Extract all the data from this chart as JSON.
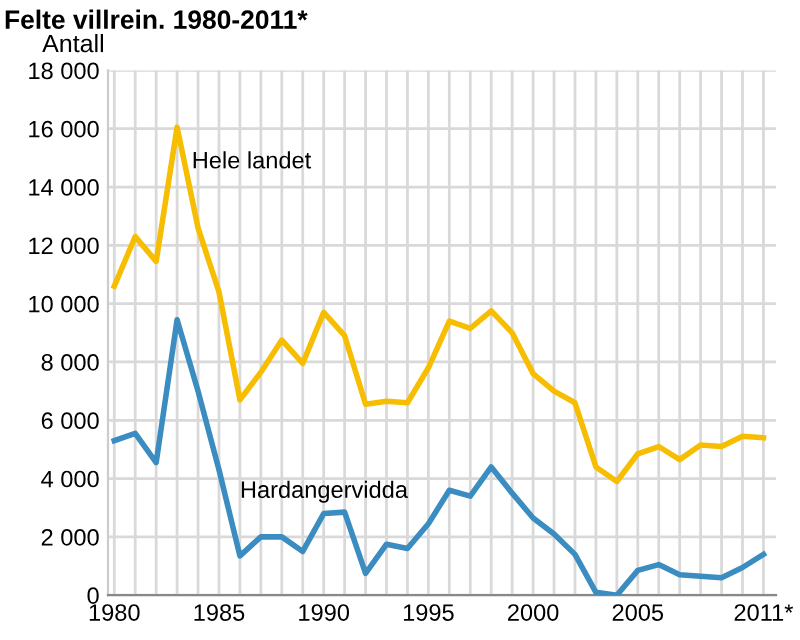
{
  "chart_data": {
    "type": "line",
    "title": "Felte villrein. 1980-2011*",
    "ylabel": "Antall",
    "x": [
      1980,
      1981,
      1982,
      1983,
      1984,
      1985,
      1986,
      1987,
      1988,
      1989,
      1990,
      1991,
      1992,
      1993,
      1994,
      1995,
      1996,
      1997,
      1998,
      1999,
      2000,
      2001,
      2002,
      2003,
      2004,
      2005,
      2006,
      2007,
      2008,
      2009,
      2010,
      2011
    ],
    "series": [
      {
        "name": "Hele landet",
        "color": "#f7bd00",
        "values": [
          10600,
          12300,
          11450,
          16050,
          12600,
          10400,
          6700,
          7650,
          8750,
          7950,
          9700,
          8900,
          6550,
          6650,
          6600,
          7800,
          9400,
          9150,
          9750,
          9000,
          7600,
          7000,
          6600,
          4400,
          3900,
          4850,
          5100,
          4650,
          5150,
          5100,
          5450,
          5400
        ]
      },
      {
        "name": "Hardangervidda",
        "color": "#3a8cc1",
        "values": [
          5300,
          5550,
          4550,
          9450,
          7000,
          4300,
          1350,
          2000,
          2000,
          1500,
          2800,
          2850,
          750,
          1750,
          1600,
          2450,
          3600,
          3400,
          4400,
          3500,
          2650,
          2100,
          1400,
          100,
          0,
          850,
          1050,
          700,
          650,
          600,
          950,
          1400
        ]
      }
    ],
    "xlim": [
      1979.7,
      2011.6
    ],
    "ylim": [
      0,
      18000
    ],
    "xticks": [
      {
        "value": 1980,
        "label": "1980"
      },
      {
        "value": 1981,
        "label": null
      },
      {
        "value": 1982,
        "label": null
      },
      {
        "value": 1983,
        "label": null
      },
      {
        "value": 1984,
        "label": null
      },
      {
        "value": 1985,
        "label": "1985"
      },
      {
        "value": 1986,
        "label": null
      },
      {
        "value": 1987,
        "label": null
      },
      {
        "value": 1988,
        "label": null
      },
      {
        "value": 1989,
        "label": null
      },
      {
        "value": 1990,
        "label": "1990"
      },
      {
        "value": 1991,
        "label": null
      },
      {
        "value": 1992,
        "label": null
      },
      {
        "value": 1993,
        "label": null
      },
      {
        "value": 1994,
        "label": null
      },
      {
        "value": 1995,
        "label": "1995"
      },
      {
        "value": 1996,
        "label": null
      },
      {
        "value": 1997,
        "label": null
      },
      {
        "value": 1998,
        "label": null
      },
      {
        "value": 1999,
        "label": null
      },
      {
        "value": 2000,
        "label": "2000"
      },
      {
        "value": 2001,
        "label": null
      },
      {
        "value": 2002,
        "label": null
      },
      {
        "value": 2003,
        "label": null
      },
      {
        "value": 2004,
        "label": null
      },
      {
        "value": 2005,
        "label": "2005"
      },
      {
        "value": 2006,
        "label": null
      },
      {
        "value": 2007,
        "label": null
      },
      {
        "value": 2008,
        "label": null
      },
      {
        "value": 2009,
        "label": null
      },
      {
        "value": 2010,
        "label": null
      },
      {
        "value": 2011,
        "label": "2011*"
      }
    ],
    "yticks": [
      {
        "value": 0,
        "label": "0"
      },
      {
        "value": 2000,
        "label": "2 000"
      },
      {
        "value": 4000,
        "label": "4 000"
      },
      {
        "value": 6000,
        "label": "6 000"
      },
      {
        "value": 8000,
        "label": "8 000"
      },
      {
        "value": 10000,
        "label": "10 000"
      },
      {
        "value": 12000,
        "label": "12 000"
      },
      {
        "value": 14000,
        "label": "14 000"
      },
      {
        "value": 16000,
        "label": "16 000"
      },
      {
        "value": 18000,
        "label": "18 000"
      }
    ],
    "grid": true,
    "legend": false,
    "marker": "none",
    "line_style": "solid"
  }
}
